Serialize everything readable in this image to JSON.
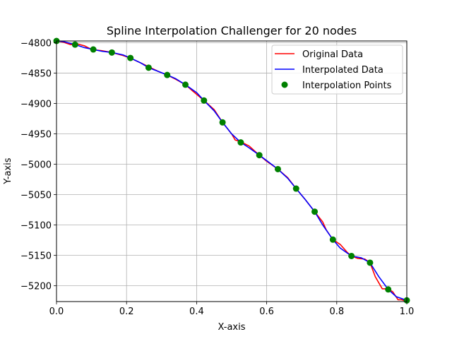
{
  "chart_data": {
    "type": "line",
    "title": "Spline Interpolation Challenger for 20 nodes",
    "xlabel": "X-axis",
    "ylabel": "Y-axis",
    "xlim": [
      0.0,
      1.0
    ],
    "ylim": [
      -5226,
      -4797
    ],
    "xticks": [
      0.0,
      0.2,
      0.4,
      0.6,
      0.8,
      1.0
    ],
    "xtick_labels": [
      "0.0",
      "0.2",
      "0.4",
      "0.6",
      "0.8",
      "1.0"
    ],
    "yticks": [
      -4800,
      -4850,
      -4900,
      -4950,
      -5000,
      -5050,
      -5100,
      -5150,
      -5200
    ],
    "ytick_labels": [
      "−4800",
      "−4850",
      "−4900",
      "−4950",
      "−5000",
      "−5050",
      "−5100",
      "−5150",
      "−5200"
    ],
    "grid": true,
    "legend_position": "top-right",
    "series": [
      {
        "name": "Original Data",
        "kind": "line",
        "color": "#ff0000",
        "x": [
          0.0,
          0.02,
          0.04,
          0.06,
          0.08,
          0.1,
          0.13,
          0.158,
          0.19,
          0.21,
          0.24,
          0.265,
          0.29,
          0.316,
          0.34,
          0.368,
          0.39,
          0.421,
          0.45,
          0.474,
          0.5,
          0.51,
          0.526,
          0.55,
          0.579,
          0.6,
          0.632,
          0.66,
          0.684,
          0.71,
          0.737,
          0.76,
          0.77,
          0.789,
          0.81,
          0.83,
          0.842,
          0.86,
          0.88,
          0.895,
          0.91,
          0.93,
          0.947,
          0.96,
          0.975,
          0.985,
          1.0
        ],
        "y": [
          -4797,
          -4799,
          -4803,
          -4802,
          -4805,
          -4811,
          -4813,
          -4816,
          -4821,
          -4825,
          -4833,
          -4840,
          -4847,
          -4853,
          -4860,
          -4869,
          -4880,
          -4895,
          -4910,
          -4931,
          -4950,
          -4960,
          -4963,
          -4970,
          -4985,
          -4995,
          -5008,
          -5022,
          -5040,
          -5058,
          -5078,
          -5095,
          -5108,
          -5124,
          -5132,
          -5145,
          -5151,
          -5155,
          -5156,
          -5162,
          -5185,
          -5205,
          -5205,
          -5210,
          -5223,
          -5223,
          -5226
        ]
      },
      {
        "name": "Interpolated Data",
        "kind": "line",
        "color": "#0000ff",
        "x": [
          0.0,
          0.02,
          0.053,
          0.08,
          0.105,
          0.13,
          0.158,
          0.19,
          0.211,
          0.24,
          0.263,
          0.29,
          0.316,
          0.34,
          0.368,
          0.4,
          0.421,
          0.45,
          0.474,
          0.5,
          0.526,
          0.55,
          0.579,
          0.6,
          0.632,
          0.66,
          0.684,
          0.71,
          0.737,
          0.76,
          0.789,
          0.81,
          0.842,
          0.87,
          0.895,
          0.92,
          0.947,
          0.97,
          1.0
        ],
        "y": [
          -4797,
          -4798,
          -4803,
          -4808,
          -4811,
          -4814,
          -4816,
          -4820,
          -4825,
          -4833,
          -4841,
          -4847,
          -4853,
          -4859,
          -4869,
          -4882,
          -4895,
          -4912,
          -4931,
          -4950,
          -4964,
          -4973,
          -4985,
          -4994,
          -5008,
          -5023,
          -5040,
          -5058,
          -5078,
          -5100,
          -5124,
          -5138,
          -5151,
          -5154,
          -5162,
          -5185,
          -5206,
          -5218,
          -5224
        ]
      },
      {
        "name": "Interpolation Points",
        "kind": "scatter",
        "color": "#008000",
        "x": [
          0.0,
          0.053,
          0.105,
          0.158,
          0.211,
          0.263,
          0.316,
          0.368,
          0.421,
          0.474,
          0.526,
          0.579,
          0.632,
          0.684,
          0.737,
          0.789,
          0.842,
          0.895,
          0.947,
          1.0
        ],
        "y": [
          -4797,
          -4803,
          -4811,
          -4816,
          -4825,
          -4841,
          -4853,
          -4869,
          -4895,
          -4931,
          -4964,
          -4985,
          -5008,
          -5040,
          -5078,
          -5124,
          -5151,
          -5162,
          -5206,
          -5224
        ]
      }
    ]
  }
}
